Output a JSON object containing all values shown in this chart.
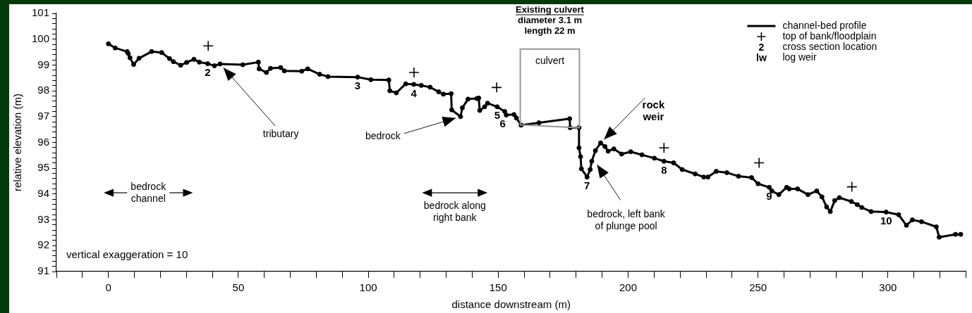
{
  "chart_data": {
    "type": "line",
    "xlabel": "distance downstream (m)",
    "ylabel": "relative elevation (m)",
    "xlim": [
      -20,
      330
    ],
    "ylim": [
      91,
      101
    ],
    "xticks": [
      {
        "value": -20,
        "label": null
      },
      {
        "value": -10,
        "label": null
      },
      0,
      {
        "value": 10,
        "label": null
      },
      {
        "value": 20,
        "label": null
      },
      {
        "value": 30,
        "label": null
      },
      {
        "value": 40,
        "label": null
      },
      50,
      {
        "value": 60,
        "label": null
      },
      {
        "value": 70,
        "label": null
      },
      {
        "value": 80,
        "label": null
      },
      {
        "value": 90,
        "label": null
      },
      100,
      {
        "value": 110,
        "label": null
      },
      {
        "value": 120,
        "label": null
      },
      {
        "value": 130,
        "label": null
      },
      {
        "value": 140,
        "label": null
      },
      150,
      {
        "value": 160,
        "label": null
      },
      {
        "value": 170,
        "label": null
      },
      {
        "value": 180,
        "label": null
      },
      {
        "value": 190,
        "label": null
      },
      200,
      {
        "value": 210,
        "label": null
      },
      {
        "value": 220,
        "label": null
      },
      {
        "value": 230,
        "label": null
      },
      {
        "value": 240,
        "label": null
      },
      250,
      {
        "value": 260,
        "label": null
      },
      {
        "value": 270,
        "label": null
      },
      {
        "value": 280,
        "label": null
      },
      {
        "value": 290,
        "label": null
      },
      300,
      {
        "value": 310,
        "label": null
      },
      {
        "value": 320,
        "label": null
      },
      {
        "value": 330,
        "label": null
      }
    ],
    "yticks": [
      91,
      {
        "value": 91.2,
        "label": null
      },
      {
        "value": 91.4,
        "label": null
      },
      {
        "value": 91.6,
        "label": null
      },
      {
        "value": 91.8,
        "label": null
      },
      92,
      {
        "value": 92.2,
        "label": null
      },
      {
        "value": 92.4,
        "label": null
      },
      {
        "value": 92.6,
        "label": null
      },
      {
        "value": 92.8,
        "label": null
      },
      93,
      {
        "value": 93.2,
        "label": null
      },
      {
        "value": 93.4,
        "label": null
      },
      {
        "value": 93.6,
        "label": null
      },
      {
        "value": 93.8,
        "label": null
      },
      94,
      {
        "value": 94.2,
        "label": null
      },
      {
        "value": 94.4,
        "label": null
      },
      {
        "value": 94.6,
        "label": null
      },
      {
        "value": 94.8,
        "label": null
      },
      95,
      {
        "value": 95.2,
        "label": null
      },
      {
        "value": 95.4,
        "label": null
      },
      {
        "value": 95.6,
        "label": null
      },
      {
        "value": 95.8,
        "label": null
      },
      96,
      {
        "value": 96.2,
        "label": null
      },
      {
        "value": 96.4,
        "label": null
      },
      {
        "value": 96.6,
        "label": null
      },
      {
        "value": 96.8,
        "label": null
      },
      97,
      {
        "value": 97.2,
        "label": null
      },
      {
        "value": 97.4,
        "label": null
      },
      {
        "value": 97.6,
        "label": null
      },
      {
        "value": 97.8,
        "label": null
      },
      98,
      {
        "value": 98.2,
        "label": null
      },
      {
        "value": 98.4,
        "label": null
      },
      {
        "value": 98.6,
        "label": null
      },
      {
        "value": 98.8,
        "label": null
      },
      99,
      {
        "value": 99.2,
        "label": null
      },
      {
        "value": 99.4,
        "label": null
      },
      {
        "value": 99.6,
        "label": null
      },
      {
        "value": 99.8,
        "label": null
      },
      100,
      {
        "value": 100.2,
        "label": null
      },
      {
        "value": 100.4,
        "label": null
      },
      {
        "value": 100.6,
        "label": null
      },
      {
        "value": 100.8,
        "label": null
      },
      101
    ],
    "grid": false,
    "legend": "top right",
    "series": [
      {
        "name": "channel-bed profile",
        "color": "#000000",
        "marker": "circle",
        "x": [
          0,
          2.6,
          7.2,
          7.6,
          8.3,
          9.7,
          11.8,
          16.6,
          20.5,
          23.5,
          25,
          27.8,
          30.1,
          32.9,
          35,
          38.2,
          40.8,
          43,
          51.7,
          57.7,
          58,
          60.8,
          62.4,
          66.3,
          67.7,
          74.4,
          76.7,
          81.3,
          84.5,
          95.9,
          101,
          107.9,
          108.3,
          110.8,
          114.4,
          117.5,
          120.4,
          123.8,
          127.1,
          128.9,
          131.9,
          132.1,
          135.5,
          136.2,
          138.4,
          141.8,
          142.5,
          142.9,
          144.8,
          145.9,
          149.6,
          152.5,
          153.1,
          156.1,
          157,
          158.8,
          165.7,
          177.5,
          177.7,
          181.1,
          181.1,
          181.7,
          182,
          184.2,
          185.4,
          186,
          187.4,
          189.4,
          191.1,
          192.3,
          194.5,
          197.5,
          201,
          205.3,
          210.1,
          213.8,
          217.5,
          220.8,
          225.8,
          229.1,
          230.7,
          233.9,
          238,
          242.5,
          247.5,
          250,
          254.3,
          255.3,
          258,
          261,
          262,
          265.2,
          269.2,
          272.6,
          274.6,
          276.4,
          277.8,
          279.5,
          281.3,
          285.9,
          288.2,
          289.9,
          293.5,
          299.3,
          304.1,
          307.1,
          309.4,
          312.9,
          318.6,
          319.7,
          326,
          328
        ],
        "values": [
          99.82,
          99.66,
          99.52,
          99.45,
          99.28,
          99.02,
          99.26,
          99.52,
          99.48,
          99.25,
          99.13,
          98.99,
          99.1,
          99.22,
          99.11,
          99.05,
          98.97,
          99.04,
          99.01,
          99.11,
          98.85,
          98.71,
          98.87,
          98.9,
          98.77,
          98.76,
          98.85,
          98.64,
          98.55,
          98.53,
          98.43,
          98.42,
          98.0,
          97.92,
          98.27,
          98.25,
          98.21,
          98.14,
          97.96,
          97.87,
          97.89,
          97.26,
          97.0,
          97.34,
          97.68,
          97.7,
          97.72,
          97.24,
          97.38,
          97.52,
          97.38,
          97.2,
          97.06,
          97.08,
          96.95,
          96.67,
          96.76,
          96.92,
          96.57,
          96.57,
          95.79,
          95.45,
          94.98,
          94.66,
          94.95,
          95.27,
          95.68,
          95.98,
          95.84,
          95.66,
          95.75,
          95.55,
          95.64,
          95.52,
          95.39,
          95.27,
          95.21,
          94.95,
          94.78,
          94.66,
          94.66,
          94.88,
          94.83,
          94.69,
          94.64,
          94.4,
          94.26,
          94.12,
          93.98,
          94.26,
          94.2,
          94.2,
          93.98,
          94.12,
          93.89,
          93.5,
          93.32,
          93.75,
          93.86,
          93.71,
          93.59,
          93.48,
          93.32,
          93.3,
          93.2,
          92.79,
          93.0,
          92.93,
          92.73,
          92.33,
          92.44,
          92.44
        ]
      },
      {
        "name": "top of bank/floodplain",
        "type": "scatter",
        "color": "#000000",
        "marker": "cross",
        "x": [
          38.4,
          117.6,
          149.4,
          213.8,
          250.4,
          286.1
        ],
        "values": [
          99.74,
          98.71,
          98.13,
          95.79,
          95.21,
          94.28
        ]
      }
    ],
    "annotations": [
      "vertical exaggeration = 10",
      "2 cross section location",
      "lw log weir",
      "Existing culvert\ndiameter 3.1 m\nlength 22 m",
      "bedrock\nchannel",
      "bedrock along\nright bank",
      "culvert",
      {
        "text": "2",
        "x": 38.2,
        "y": 99.05
      },
      {
        "text": "3",
        "x": 95.9,
        "y": 98.53
      },
      {
        "text": "4",
        "x": 117.5,
        "y": 98.25
      },
      {
        "text": "5",
        "x": 149.6,
        "y": 97.38
      },
      {
        "text": "6",
        "x": 156.1,
        "y": 97.08
      },
      {
        "text": "7",
        "x": 184.2,
        "y": 94.66
      },
      {
        "text": "8",
        "x": 213.8,
        "y": 95.27
      },
      {
        "text": "9",
        "x": 254.3,
        "y": 94.26
      },
      {
        "text": "10",
        "x": 299.3,
        "y": 93.3
      },
      {
        "text": "tributary",
        "x": 43,
        "y": 99.04
      },
      {
        "text": "bedrock",
        "x": 135.5,
        "y": 97.0
      },
      {
        "text": "rock\nweir",
        "x": 189.4,
        "y": 95.98
      },
      {
        "text": "bedrock, left bank\nof plunge pool",
        "x": 187,
        "y": 95.3
      }
    ]
  }
}
